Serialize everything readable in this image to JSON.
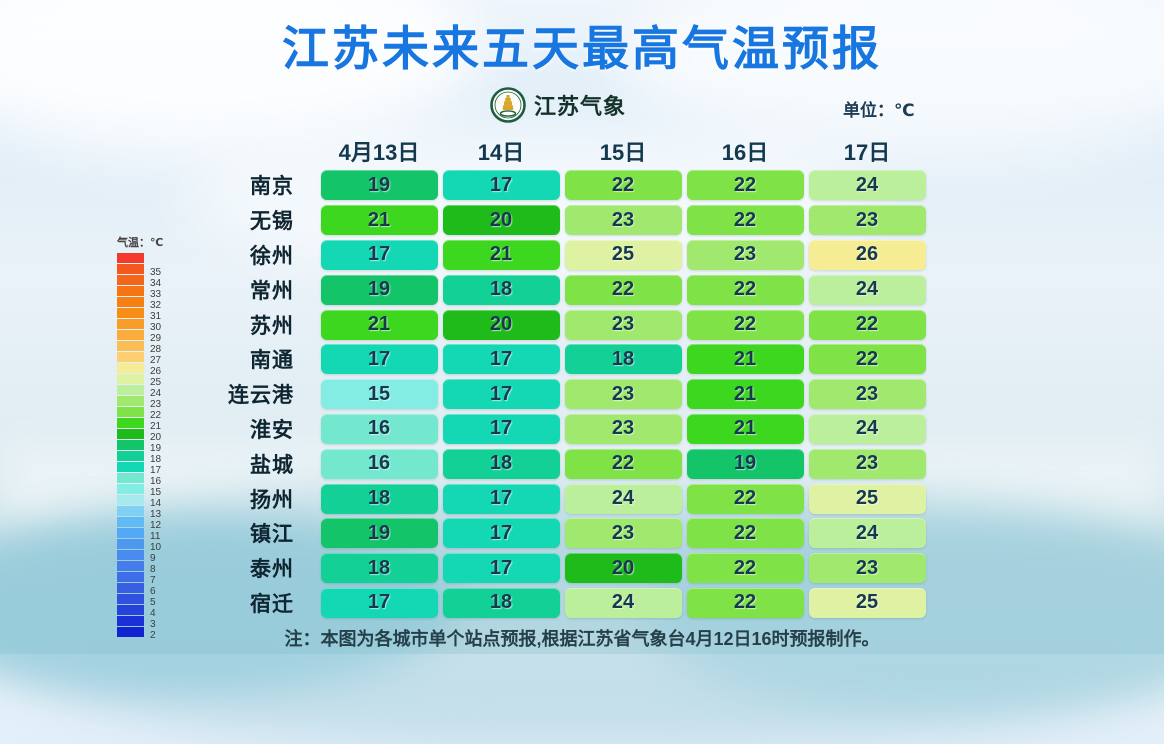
{
  "header": {
    "title": "江苏未来五天最高气温预报",
    "brand": "江苏气象",
    "unit_label": "单位：℃"
  },
  "legend": {
    "title": "气温：℃",
    "top_color": "#F43A2C",
    "labels": [
      35,
      34,
      33,
      32,
      31,
      30,
      29,
      28,
      27,
      26,
      25,
      24,
      23,
      22,
      21,
      20,
      19,
      18,
      17,
      16,
      15,
      14,
      13,
      12,
      11,
      10,
      9,
      8,
      7,
      6,
      5,
      4,
      3,
      2
    ]
  },
  "palette": {
    "35": "#F4581E",
    "34": "#F4661A",
    "33": "#F57414",
    "32": "#F68112",
    "31": "#F78E18",
    "30": "#F99D28",
    "29": "#FAAC3C",
    "28": "#FBBE55",
    "27": "#FCD072",
    "26": "#F6EC94",
    "25": "#DFF2A3",
    "24": "#BCEF9B",
    "23": "#A0E96E",
    "22": "#7FE246",
    "21": "#3ED71F",
    "20": "#1FBB1B",
    "19": "#13C468",
    "18": "#12D096",
    "17": "#14D7B4",
    "16": "#74E7CF",
    "15": "#84EDE3",
    "14": "#A6E9ED",
    "13": "#7FD0F2",
    "12": "#5FBBF5",
    "11": "#55A8F3",
    "10": "#4E99F0",
    "9": "#4A8BEE",
    "8": "#447CEB",
    "7": "#3E6EE7",
    "6": "#385FE3",
    "5": "#3050DF",
    "4": "#2741DB",
    "3": "#1C31D5",
    "2": "#1123D0"
  },
  "table": {
    "columns": [
      "4月13日",
      "14日",
      "15日",
      "16日",
      "17日"
    ],
    "rows": [
      {
        "city": "南京",
        "temps": [
          19,
          17,
          22,
          22,
          24
        ]
      },
      {
        "city": "无锡",
        "temps": [
          21,
          20,
          23,
          22,
          23
        ]
      },
      {
        "city": "徐州",
        "temps": [
          17,
          21,
          25,
          23,
          26
        ]
      },
      {
        "city": "常州",
        "temps": [
          19,
          18,
          22,
          22,
          24
        ]
      },
      {
        "city": "苏州",
        "temps": [
          21,
          20,
          23,
          22,
          22
        ]
      },
      {
        "city": "南通",
        "temps": [
          17,
          17,
          18,
          21,
          22
        ]
      },
      {
        "city": "连云港",
        "temps": [
          15,
          17,
          23,
          21,
          23
        ]
      },
      {
        "city": "淮安",
        "temps": [
          16,
          17,
          23,
          21,
          24
        ]
      },
      {
        "city": "盐城",
        "temps": [
          16,
          18,
          22,
          19,
          23
        ]
      },
      {
        "city": "扬州",
        "temps": [
          18,
          17,
          24,
          22,
          25
        ]
      },
      {
        "city": "镇江",
        "temps": [
          19,
          17,
          23,
          22,
          24
        ]
      },
      {
        "city": "泰州",
        "temps": [
          18,
          17,
          20,
          22,
          23
        ]
      },
      {
        "city": "宿迁",
        "temps": [
          17,
          18,
          24,
          22,
          25
        ]
      }
    ]
  },
  "note": "注：本图为各城市单个站点预报,根据江苏省气象台4月12日16时预报制作。",
  "colors": {
    "title": "#1876E0",
    "header_text": "#14384E",
    "city_text": "#0F2531",
    "cell_text": "#16394F",
    "note_text": "#26404A",
    "unit_text": "#1C3C55",
    "brand_text": "#14322A",
    "legend_text": "#4A4343",
    "logo_ring": "#1E5C40",
    "logo_pagoda": "#D9A627"
  },
  "chart_data": {
    "type": "heatmap",
    "title": "江苏未来五天最高气温预报",
    "unit": "℃",
    "columns": [
      "4月13日",
      "14日",
      "15日",
      "16日",
      "17日"
    ],
    "rows": [
      "南京",
      "无锡",
      "徐州",
      "常州",
      "苏州",
      "南通",
      "连云港",
      "淮安",
      "盐城",
      "扬州",
      "镇江",
      "泰州",
      "宿迁"
    ],
    "values": [
      [
        19,
        17,
        22,
        22,
        24
      ],
      [
        21,
        20,
        23,
        22,
        23
      ],
      [
        17,
        21,
        25,
        23,
        26
      ],
      [
        19,
        18,
        22,
        22,
        24
      ],
      [
        21,
        20,
        23,
        22,
        22
      ],
      [
        17,
        17,
        18,
        21,
        22
      ],
      [
        15,
        17,
        23,
        21,
        23
      ],
      [
        16,
        17,
        23,
        21,
        24
      ],
      [
        16,
        18,
        22,
        19,
        23
      ],
      [
        18,
        17,
        24,
        22,
        25
      ],
      [
        19,
        17,
        23,
        22,
        24
      ],
      [
        18,
        17,
        20,
        22,
        23
      ],
      [
        17,
        18,
        24,
        22,
        25
      ]
    ],
    "colorscale_labels": [
      35,
      34,
      33,
      32,
      31,
      30,
      29,
      28,
      27,
      26,
      25,
      24,
      23,
      22,
      21,
      20,
      19,
      18,
      17,
      16,
      15,
      14,
      13,
      12,
      11,
      10,
      9,
      8,
      7,
      6,
      5,
      4,
      3,
      2
    ],
    "legend_position": "left",
    "note": "注：本图为各城市单个站点预报,根据江苏省气象台4月12日16时预报制作。"
  }
}
